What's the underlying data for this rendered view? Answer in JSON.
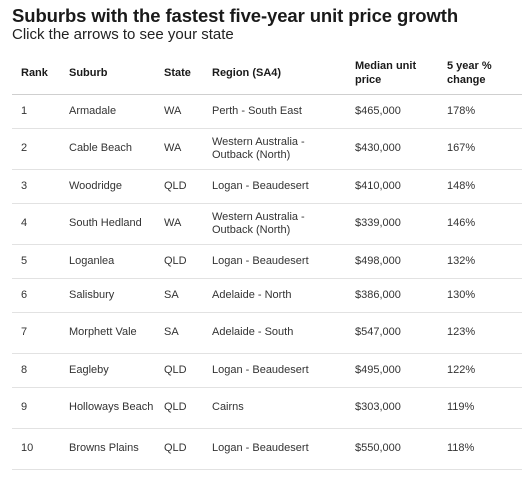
{
  "header": {
    "title": "Suburbs with the fastest five-year unit price growth",
    "subtitle": "Click the arrows to see your state"
  },
  "table": {
    "columns": [
      "Rank",
      "Suburb",
      "State",
      "Region (SA4)",
      "Median unit price",
      "5 year % change"
    ],
    "rows": [
      {
        "rank": "1",
        "suburb": "Armadale",
        "state": "WA",
        "region": "Perth - South East",
        "price": "$465,000",
        "change": "178%"
      },
      {
        "rank": "2",
        "suburb": "Cable Beach",
        "state": "WA",
        "region": "Western Australia - Outback (North)",
        "price": "$430,000",
        "change": "167%"
      },
      {
        "rank": "3",
        "suburb": "Woodridge",
        "state": "QLD",
        "region": "Logan - Beaudesert",
        "price": "$410,000",
        "change": "148%"
      },
      {
        "rank": "4",
        "suburb": "South Hedland",
        "state": "WA",
        "region": "Western Australia - Outback (North)",
        "price": "$339,000",
        "change": "146%"
      },
      {
        "rank": "5",
        "suburb": "Loganlea",
        "state": "QLD",
        "region": "Logan - Beaudesert",
        "price": "$498,000",
        "change": "132%"
      },
      {
        "rank": "6",
        "suburb": "Salisbury",
        "state": "SA",
        "region": "Adelaide - North",
        "price": "$386,000",
        "change": "130%"
      },
      {
        "rank": "7",
        "suburb": "Morphett Vale",
        "state": "SA",
        "region": "Adelaide - South",
        "price": "$547,000",
        "change": "123%"
      },
      {
        "rank": "8",
        "suburb": "Eagleby",
        "state": "QLD",
        "region": "Logan - Beaudesert",
        "price": "$495,000",
        "change": "122%"
      },
      {
        "rank": "9",
        "suburb": "Holloways Beach",
        "state": "QLD",
        "region": "Cairns",
        "price": "$303,000",
        "change": "119%"
      },
      {
        "rank": "10",
        "suburb": "Browns Plains",
        "state": "QLD",
        "region": "Logan - Beaudesert",
        "price": "$550,000",
        "change": "118%"
      }
    ]
  }
}
